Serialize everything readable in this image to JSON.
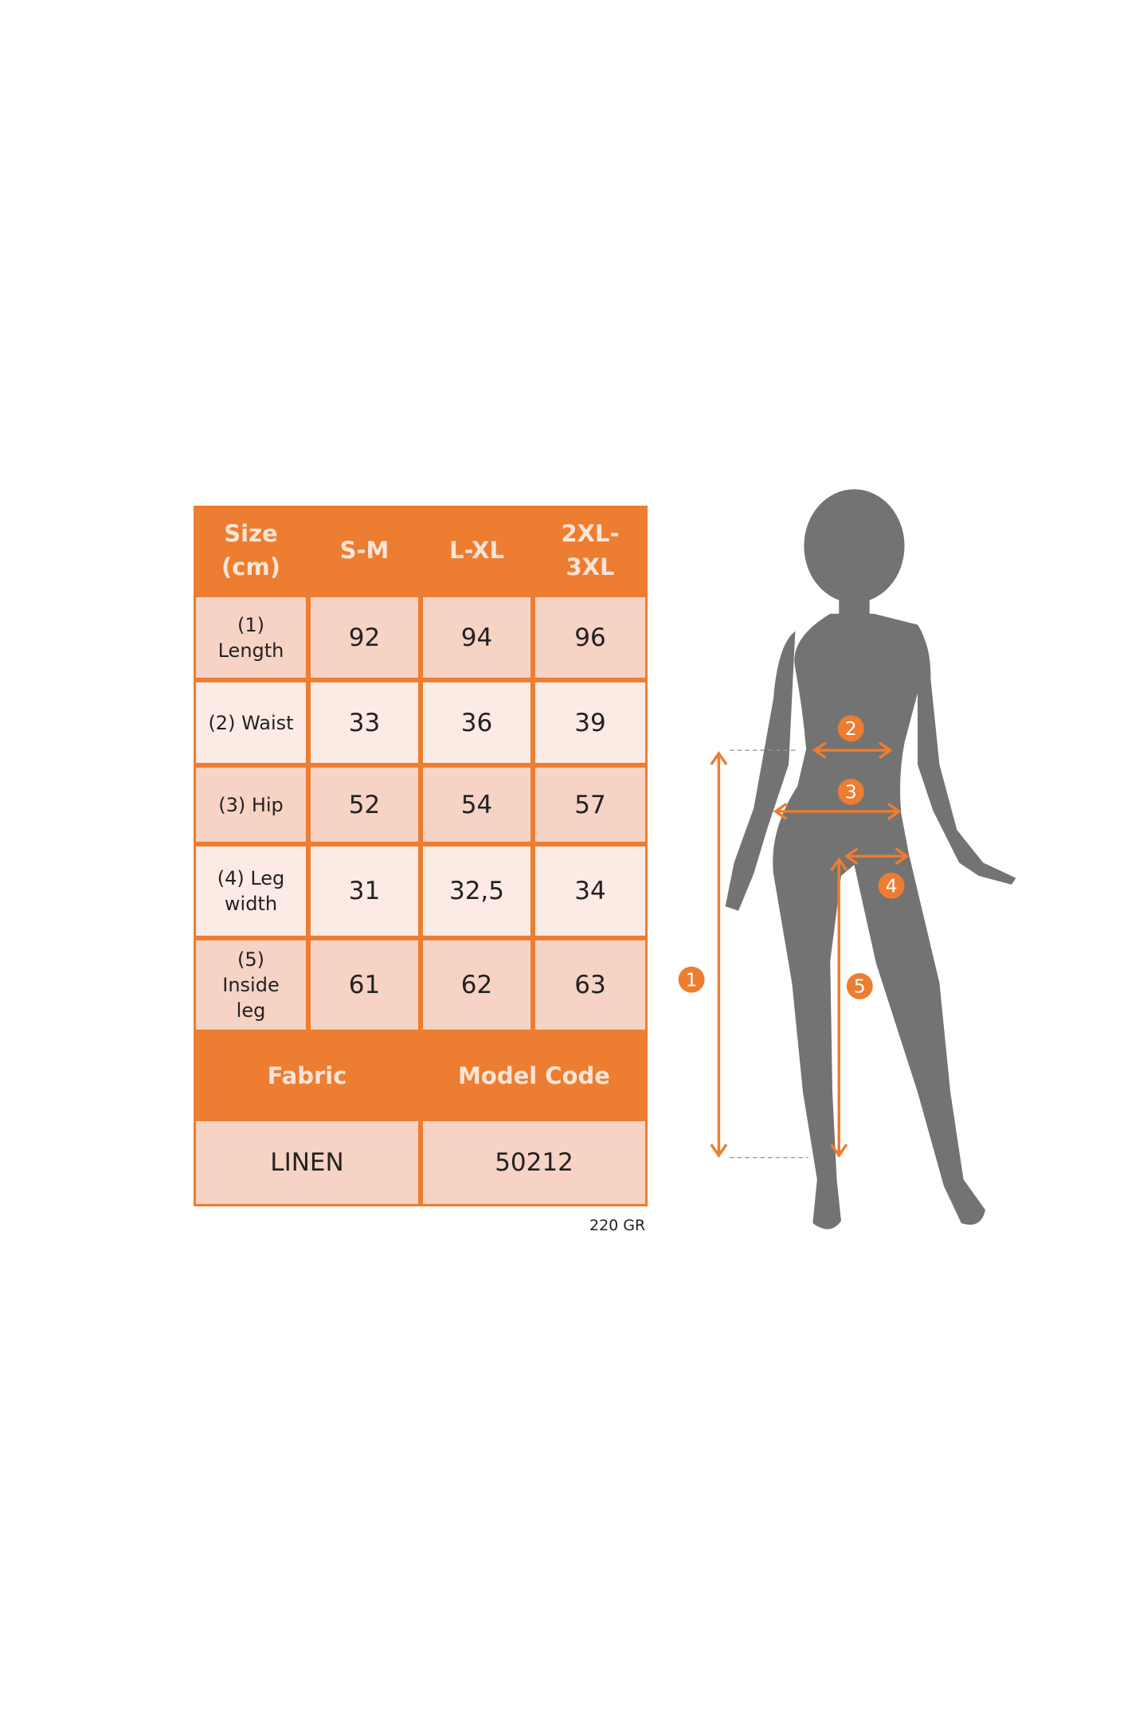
{
  "table": {
    "header": [
      "Size\n(cm)",
      "S-M",
      "L-XL",
      "2XL-\n3XL"
    ],
    "rows": [
      {
        "label": "(1)\nLength",
        "values": [
          "92",
          "94",
          "96"
        ]
      },
      {
        "label": "(2) Waist",
        "values": [
          "33",
          "36",
          "39"
        ]
      },
      {
        "label": "(3) Hip",
        "values": [
          "52",
          "54",
          "57"
        ]
      },
      {
        "label": "(4) Leg\nwidth",
        "values": [
          "31",
          "32,5",
          "34"
        ]
      },
      {
        "label": "(5)\nInside\nleg",
        "values": [
          "61",
          "62",
          "63"
        ]
      }
    ],
    "footer_headers": [
      "Fabric",
      "Model Code"
    ],
    "footer_values": [
      "LINEN",
      "50212"
    ]
  },
  "weight_note": "220 GR",
  "figure": {
    "markers": [
      "1",
      "2",
      "3",
      "4",
      "5"
    ],
    "accent": "#ED7D31",
    "silhouette": "#737373"
  }
}
